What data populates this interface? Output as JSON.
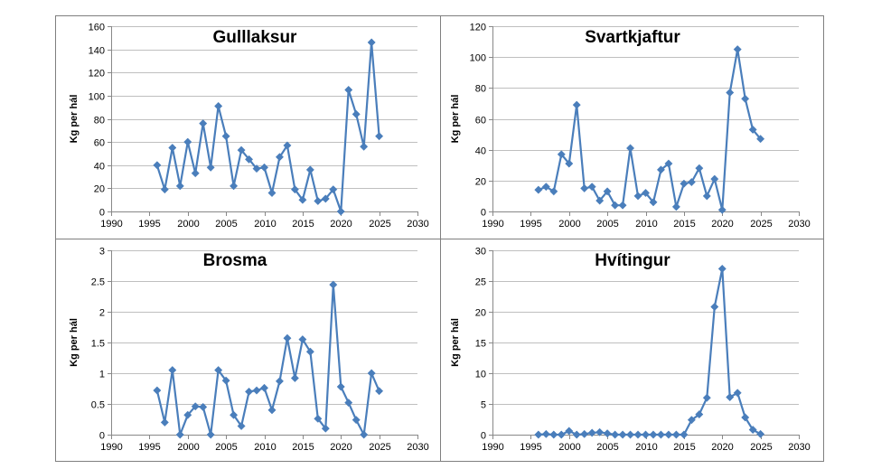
{
  "colors": {
    "series": "#4a7ebb",
    "grid": "#bfbfbf",
    "axis": "#888888",
    "text": "#000000",
    "border": "#7f7f7f"
  },
  "chart_data": [
    {
      "type": "line",
      "title": "Gulllaksur",
      "ylabel": "Kg per hál",
      "xlim": [
        1990,
        2030
      ],
      "ylim": [
        0,
        160
      ],
      "xticks": [
        1990,
        1995,
        2000,
        2005,
        2010,
        2015,
        2020,
        2025,
        2030
      ],
      "yticks": [
        0,
        20,
        40,
        60,
        80,
        100,
        120,
        140,
        160
      ],
      "ytick_labels": [
        "0",
        "20",
        "40",
        "60",
        "80",
        "100",
        "120",
        "140",
        "160"
      ],
      "grid": true,
      "series": [
        {
          "x": [
            1996,
            1997,
            1998,
            1999,
            2000,
            2001,
            2002,
            2003,
            2004,
            2005,
            2006,
            2007,
            2008,
            2009,
            2010,
            2011,
            2012,
            2013,
            2014,
            2015,
            2016,
            2017,
            2018,
            2019,
            2020,
            2021,
            2022,
            2023,
            2024,
            2025
          ],
          "values": [
            40,
            19,
            55,
            22,
            60,
            33,
            76,
            38,
            91,
            65,
            22,
            53,
            45,
            37,
            38,
            16,
            47,
            57,
            19,
            10,
            36,
            9,
            11,
            19,
            0,
            105,
            84,
            56,
            146,
            65
          ]
        }
      ]
    },
    {
      "type": "line",
      "title": "Svartkjaftur",
      "ylabel": "Kg per hál",
      "xlim": [
        1990,
        2030
      ],
      "ylim": [
        0,
        120
      ],
      "xticks": [
        1990,
        1995,
        2000,
        2005,
        2010,
        2015,
        2020,
        2025,
        2030
      ],
      "yticks": [
        0,
        20,
        40,
        60,
        80,
        100,
        120
      ],
      "ytick_labels": [
        "0",
        "20",
        "40",
        "60",
        "80",
        "100",
        "120"
      ],
      "grid": true,
      "series": [
        {
          "x": [
            1996,
            1997,
            1998,
            1999,
            2000,
            2001,
            2002,
            2003,
            2004,
            2005,
            2006,
            2007,
            2008,
            2009,
            2010,
            2011,
            2012,
            2013,
            2014,
            2015,
            2016,
            2017,
            2018,
            2019,
            2020,
            2021,
            2022,
            2023,
            2024,
            2025
          ],
          "values": [
            14,
            16,
            13,
            37,
            31,
            69,
            15,
            16,
            7,
            13,
            4,
            4,
            41,
            10,
            12,
            6,
            27,
            31,
            3,
            18,
            19,
            28,
            10,
            21,
            1,
            77,
            105,
            73,
            53,
            47
          ]
        }
      ]
    },
    {
      "type": "line",
      "title": "Brosma",
      "ylabel": "Kg per hál",
      "xlim": [
        1990,
        2030
      ],
      "ylim": [
        0,
        3
      ],
      "xticks": [
        1990,
        1995,
        2000,
        2005,
        2010,
        2015,
        2020,
        2025,
        2030
      ],
      "yticks": [
        0,
        0.5,
        1,
        1.5,
        2,
        2.5,
        3
      ],
      "ytick_labels": [
        "0",
        "0.5",
        "1",
        "1.5",
        "2",
        "2.5",
        "3"
      ],
      "grid": true,
      "series": [
        {
          "x": [
            1996,
            1997,
            1998,
            1999,
            2000,
            2001,
            2002,
            2003,
            2004,
            2005,
            2006,
            2007,
            2008,
            2009,
            2010,
            2011,
            2012,
            2013,
            2014,
            2015,
            2016,
            2017,
            2018,
            2019,
            2020,
            2021,
            2022,
            2023,
            2024,
            2025
          ],
          "values": [
            0.72,
            0.2,
            1.05,
            0,
            0.32,
            0.46,
            0.45,
            0,
            1.05,
            0.88,
            0.32,
            0.14,
            0.7,
            0.72,
            0.76,
            0.4,
            0.87,
            1.57,
            0.92,
            1.55,
            1.35,
            0.26,
            0.1,
            2.44,
            0.78,
            0.52,
            0.24,
            0,
            1.0,
            0.71
          ]
        }
      ]
    },
    {
      "type": "line",
      "title": "Hvítingur",
      "ylabel": "Kg per hál",
      "xlim": [
        1990,
        2030
      ],
      "ylim": [
        0,
        30
      ],
      "xticks": [
        1990,
        1995,
        2000,
        2005,
        2010,
        2015,
        2020,
        2025,
        2030
      ],
      "yticks": [
        0,
        5,
        10,
        15,
        20,
        25,
        30
      ],
      "ytick_labels": [
        "0",
        "5",
        "10",
        "15",
        "20",
        "25",
        "30"
      ],
      "grid": true,
      "series": [
        {
          "x": [
            1996,
            1997,
            1998,
            1999,
            2000,
            2001,
            2002,
            2003,
            2004,
            2005,
            2006,
            2007,
            2008,
            2009,
            2010,
            2011,
            2012,
            2013,
            2014,
            2015,
            2016,
            2017,
            2018,
            2019,
            2020,
            2021,
            2022,
            2023,
            2024,
            2025
          ],
          "values": [
            0,
            0.1,
            0,
            0,
            0.6,
            0,
            0.1,
            0.3,
            0.4,
            0.2,
            0,
            0,
            0,
            0,
            0,
            0,
            0,
            0,
            0,
            0,
            2.4,
            3.3,
            6,
            20.8,
            27,
            6.1,
            6.8,
            2.8,
            0.8,
            0.1
          ]
        }
      ]
    }
  ]
}
